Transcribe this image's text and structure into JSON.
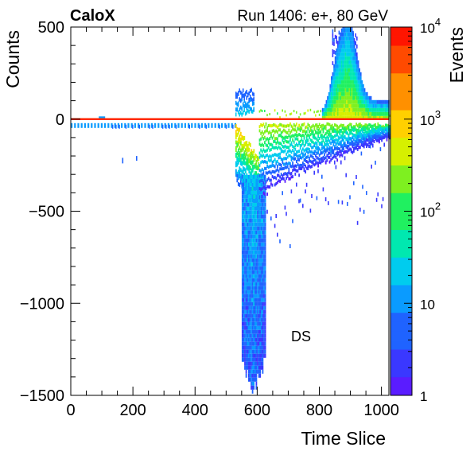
{
  "chart_data": {
    "type": "heatmap",
    "title_left": "CaloX",
    "title_right": "Run 1406: e+, 80 GeV",
    "xlabel": "Time Slice",
    "ylabel": "Counts",
    "zlabel": "Events",
    "xlim": [
      0,
      1024
    ],
    "ylim": [
      -1500,
      500
    ],
    "x_ticks": [
      0,
      200,
      400,
      600,
      800,
      1000
    ],
    "x_tick_labels": [
      "0",
      "200",
      "400",
      "600",
      "800",
      "1000"
    ],
    "y_ticks": [
      500,
      0,
      -500,
      -1000,
      -1500
    ],
    "y_tick_labels": [
      "500",
      "0",
      "−500",
      "−1000",
      "−1500"
    ],
    "z_scale": "log",
    "zlim": [
      1,
      10000
    ],
    "z_tick_labels": [
      {
        "value": 1,
        "base": "1",
        "exp": ""
      },
      {
        "value": 10,
        "base": "10",
        "exp": ""
      },
      {
        "value": 100,
        "base": "10",
        "exp": "2"
      },
      {
        "value": 1000,
        "base": "10",
        "exp": "3"
      },
      {
        "value": 10000,
        "base": "10",
        "exp": "4"
      }
    ],
    "annotation": "DS",
    "baseline": {
      "y": 0,
      "color": "#ff2a00"
    },
    "pulse": {
      "onset_x": 540,
      "peak_x": 580,
      "min_y": -1500,
      "secondary_peak_x": 880,
      "secondary_peak_y": 500
    }
  },
  "colors": {
    "palette": [
      "#5a1cff",
      "#3a38ff",
      "#1f63ff",
      "#0a9bff",
      "#00ccee",
      "#00e8b0",
      "#20f060",
      "#7ef020",
      "#d6f000",
      "#ffd000",
      "#ff9000",
      "#ff4a00",
      "#ff1500"
    ],
    "baseline": "#ff2a00"
  }
}
